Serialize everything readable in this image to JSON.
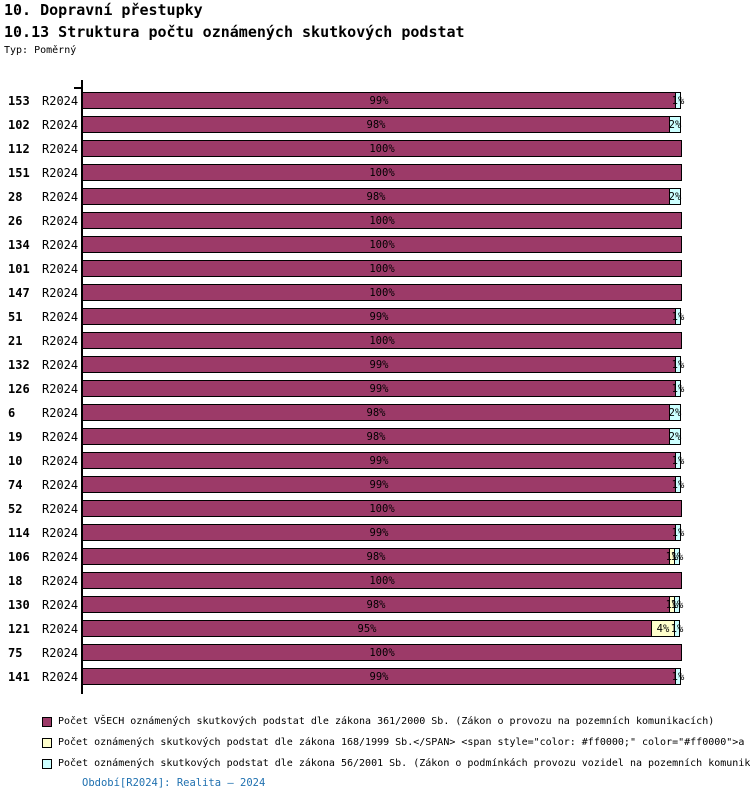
{
  "header": {
    "title": "10. Dopravní přestupky",
    "subtitle": "10.13 Struktura počtu oznámených skutkových podstat",
    "type_label": "Typ: Poměrný"
  },
  "chart_data": {
    "type": "bar",
    "orientation": "horizontal",
    "stacked": true,
    "unit": "%",
    "xlim": [
      0,
      100
    ],
    "grid": false,
    "legend_position": "bottom",
    "period_label": "R2024",
    "categories": [
      "153",
      "102",
      "112",
      "151",
      "28",
      "26",
      "134",
      "101",
      "147",
      "51",
      "21",
      "132",
      "126",
      "6",
      "19",
      "10",
      "74",
      "52",
      "114",
      "106",
      "18",
      "130",
      "121",
      "75",
      "141"
    ],
    "series": [
      {
        "key": "zakon-361-2000",
        "name": "Počet VŠECH oznámených skutkových podstat dle zákona 361/2000 Sb. (Zákon o provozu na pozemních komunikacích)",
        "color": "#9c3a68",
        "values": [
          99,
          98,
          100,
          100,
          98,
          100,
          100,
          100,
          100,
          99,
          100,
          99,
          99,
          98,
          98,
          99,
          99,
          100,
          99,
          98,
          100,
          98,
          95,
          100,
          99
        ]
      },
      {
        "key": "zakon-168-1999",
        "name": "Počet oznámených skutkových podstat dle zákona 168/1999 Sb.</SPAN> <span style=\"color: #ff0000;\" color=\"#ff0000\">a",
        "color": "#ffffcc",
        "values": [
          0,
          0,
          0,
          0,
          0,
          0,
          0,
          0,
          0,
          0,
          0,
          0,
          0,
          0,
          0,
          0,
          0,
          0,
          0,
          1,
          0,
          1,
          4,
          0,
          0
        ]
      },
      {
        "key": "zakon-56-2001",
        "name": "Počet oznámených skutkových podstat dle zákona 56/2001 Sb. (Zákon o podmínkách provozu vozidel na pozemních komunik",
        "color": "#ccffff",
        "values": [
          1,
          2,
          0,
          0,
          2,
          0,
          0,
          0,
          0,
          1,
          0,
          1,
          1,
          2,
          2,
          1,
          1,
          0,
          1,
          1,
          0,
          1,
          1,
          0,
          1
        ]
      }
    ]
  },
  "footer": {
    "period_note": "Období[R2024]: Realita – 2024"
  }
}
